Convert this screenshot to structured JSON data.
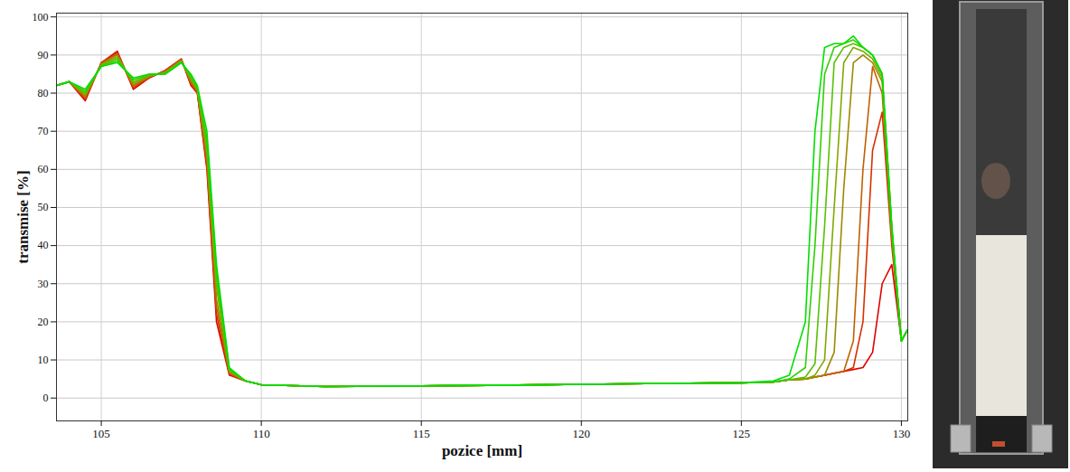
{
  "chart_data": {
    "type": "line",
    "x_label": "pozice [mm]",
    "y_label": "transmise [%]",
    "xlim": [
      103.6,
      130.2
    ],
    "ylim": [
      -6,
      101
    ],
    "xticks": [
      105,
      110,
      115,
      120,
      125,
      130
    ],
    "yticks": [
      0,
      10,
      20,
      30,
      40,
      50,
      60,
      70,
      80,
      90,
      100
    ],
    "grid": true,
    "x": [
      103.6,
      104,
      104.5,
      105,
      105.5,
      106,
      106.5,
      107,
      107.5,
      107.8,
      108,
      108.3,
      108.6,
      109,
      109.5,
      110,
      112,
      115,
      118,
      120,
      122,
      125,
      126,
      126.5,
      127,
      127.3,
      127.6,
      127.9,
      128.2,
      128.5,
      128.8,
      129.1,
      129.4,
      129.7,
      130,
      130.2
    ],
    "series": [
      {
        "color": "#e00000",
        "values": [
          82,
          83,
          78,
          88,
          91,
          81,
          84,
          86,
          89,
          82,
          80,
          60,
          20,
          6,
          4.5,
          3.5,
          3,
          3.2,
          3.4,
          3.6,
          3.8,
          4,
          4.2,
          4.8,
          5,
          5.5,
          6,
          6.5,
          7,
          7.5,
          8,
          12,
          30,
          35,
          15,
          18
        ]
      },
      {
        "color": "#d83000",
        "values": [
          82,
          83,
          78.4,
          88,
          90.6,
          81.4,
          84.1,
          85.9,
          88.9,
          82.4,
          80.2,
          61,
          22,
          6.2,
          4.5,
          3.5,
          3,
          3.2,
          3.4,
          3.6,
          3.8,
          4,
          4.2,
          4.8,
          5,
          5.5,
          6,
          6.5,
          7,
          8,
          20,
          65,
          75,
          40,
          15,
          18
        ]
      },
      {
        "color": "#c06000",
        "values": [
          82,
          83,
          78.8,
          87.8,
          90.3,
          81.8,
          84.2,
          85.8,
          88.8,
          82.8,
          80.5,
          62,
          24,
          6.5,
          4.5,
          3.5,
          3,
          3.2,
          3.4,
          3.6,
          3.8,
          4,
          4.2,
          4.8,
          5,
          5.5,
          6,
          6.5,
          7,
          15,
          60,
          87,
          80,
          42,
          15,
          18
        ]
      },
      {
        "color": "#a08800",
        "values": [
          82,
          83,
          79.2,
          87.6,
          90,
          82.2,
          84.4,
          85.6,
          88.6,
          83.2,
          80.8,
          63.5,
          26,
          6.8,
          4.5,
          3.5,
          3,
          3.2,
          3.4,
          3.6,
          3.8,
          4,
          4.2,
          4.8,
          5,
          5.5,
          6,
          12,
          55,
          88,
          90,
          88,
          83,
          43,
          15,
          18
        ]
      },
      {
        "color": "#80a800",
        "values": [
          82,
          83,
          79.6,
          87.4,
          89.5,
          82.6,
          84.6,
          85.4,
          88.4,
          83.6,
          81.1,
          65,
          29,
          7.1,
          4.5,
          3.5,
          3,
          3.2,
          3.4,
          3.6,
          3.8,
          4,
          4.2,
          4.8,
          5,
          6,
          10,
          50,
          88,
          92,
          91,
          89,
          84,
          44,
          15,
          18
        ]
      },
      {
        "color": "#58c000",
        "values": [
          82,
          83,
          80,
          87.2,
          89,
          83,
          84.8,
          85.2,
          88.2,
          84,
          81.4,
          66.5,
          31,
          7.4,
          4.5,
          3.5,
          3,
          3.2,
          3.4,
          3.6,
          3.8,
          4,
          4.2,
          4.8,
          5.5,
          9,
          45,
          88,
          92,
          93,
          92,
          90,
          85,
          45,
          15,
          18
        ]
      },
      {
        "color": "#30d000",
        "values": [
          82,
          83,
          80.5,
          87,
          88.5,
          83.5,
          85,
          85,
          88,
          84.5,
          81.7,
          68,
          33,
          7.7,
          4.5,
          3.5,
          3,
          3.2,
          3.4,
          3.6,
          3.8,
          4,
          4.2,
          5,
          8,
          40,
          85,
          92,
          93,
          94,
          92,
          90,
          85,
          45,
          15,
          18
        ]
      },
      {
        "color": "#00e000",
        "values": [
          82,
          83,
          81,
          87,
          88,
          84,
          85,
          85,
          88,
          85,
          82,
          70,
          35,
          8,
          4.5,
          3.5,
          3,
          3.2,
          3.4,
          3.6,
          3.8,
          4,
          4.5,
          6,
          20,
          70,
          92,
          93,
          93,
          95,
          92,
          90,
          85,
          45,
          15,
          18
        ]
      }
    ]
  }
}
